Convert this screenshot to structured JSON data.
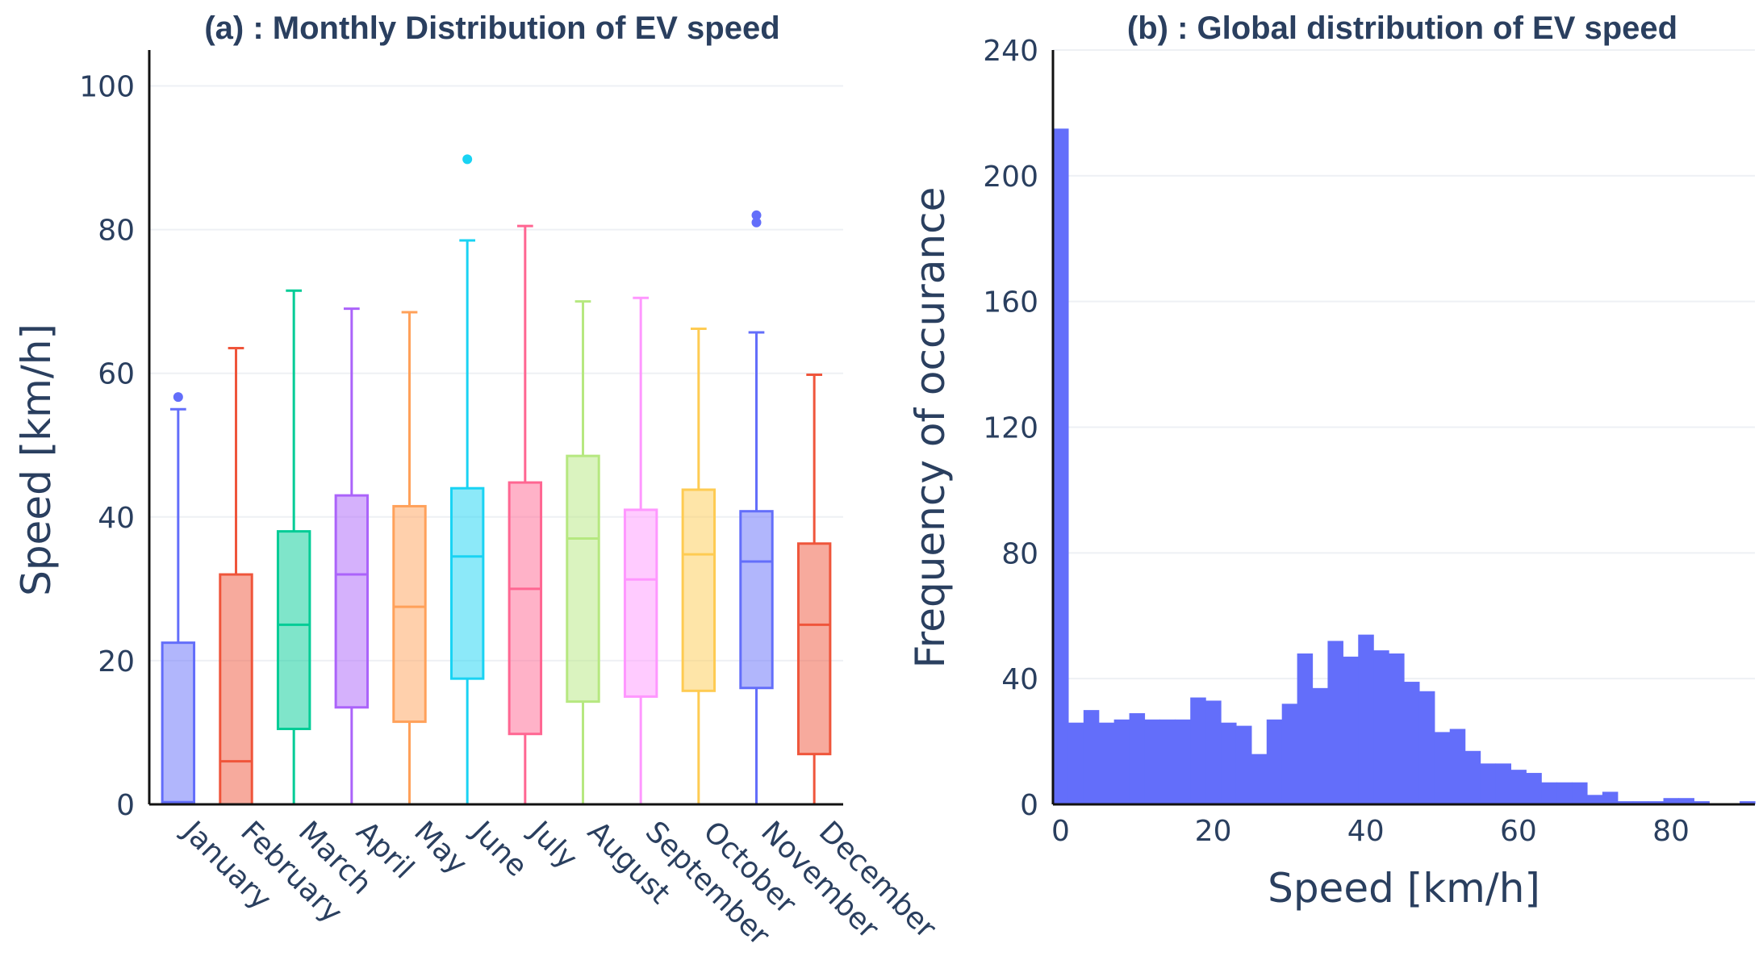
{
  "chart_data": [
    {
      "type": "box",
      "title": "(a) : Monthly Distribution of EV speed",
      "xlabel": "",
      "ylabel": "Speed [km/h]",
      "ylim": [
        0,
        105
      ],
      "yticks": [
        0,
        20,
        40,
        60,
        80,
        100
      ],
      "grid": true,
      "categories": [
        "January",
        "February",
        "March",
        "April",
        "May",
        "June",
        "July",
        "August",
        "September",
        "October",
        "November",
        "December"
      ],
      "series": [
        {
          "category": "January",
          "min": 0,
          "q1": 0.3,
          "median": 0.3,
          "q3": 22.5,
          "max": 55,
          "outliers": [
            56.7
          ],
          "color": "#636efa"
        },
        {
          "category": "February",
          "min": 0,
          "q1": 0,
          "median": 6,
          "q3": 32,
          "max": 63.5,
          "outliers": [],
          "color": "#ef553b"
        },
        {
          "category": "March",
          "min": 0,
          "q1": 10.5,
          "median": 25,
          "q3": 38,
          "max": 71.5,
          "outliers": [],
          "color": "#00cc96"
        },
        {
          "category": "April",
          "min": 0,
          "q1": 13.5,
          "median": 32,
          "q3": 43,
          "max": 69,
          "outliers": [],
          "color": "#ab63fa"
        },
        {
          "category": "May",
          "min": 0,
          "q1": 11.5,
          "median": 27.5,
          "q3": 41.5,
          "max": 68.5,
          "outliers": [],
          "color": "#ffa15a"
        },
        {
          "category": "June",
          "min": 0,
          "q1": 17.5,
          "median": 34.5,
          "q3": 44,
          "max": 78.5,
          "outliers": [
            89.8
          ],
          "color": "#19d3f3"
        },
        {
          "category": "July",
          "min": 0,
          "q1": 9.8,
          "median": 30,
          "q3": 44.8,
          "max": 80.5,
          "outliers": [],
          "color": "#ff6692"
        },
        {
          "category": "August",
          "min": 0,
          "q1": 14.3,
          "median": 37,
          "q3": 48.5,
          "max": 70,
          "outliers": [],
          "color": "#b6e880"
        },
        {
          "category": "September",
          "min": 0,
          "q1": 15,
          "median": 31.3,
          "q3": 41,
          "max": 70.5,
          "outliers": [],
          "color": "#ff97ff"
        },
        {
          "category": "October",
          "min": 0,
          "q1": 15.8,
          "median": 34.8,
          "q3": 43.8,
          "max": 66.2,
          "outliers": [],
          "color": "#fecb52"
        },
        {
          "category": "November",
          "min": 0,
          "q1": 16.2,
          "median": 33.8,
          "q3": 40.8,
          "max": 65.7,
          "outliers": [
            82,
            81
          ],
          "color": "#636efa"
        },
        {
          "category": "December",
          "min": 0,
          "q1": 7,
          "median": 25,
          "q3": 36.3,
          "max": 59.8,
          "outliers": [],
          "color": "#ef553b"
        }
      ]
    },
    {
      "type": "histogram",
      "title": "(b) : Global distribution of EV speed",
      "xlabel": "Speed [km/h]",
      "ylabel": "Frequency of occurance",
      "xlim": [
        -1,
        91
      ],
      "ylim": [
        0,
        240
      ],
      "xticks": [
        0,
        20,
        40,
        60,
        80
      ],
      "yticks": [
        0,
        40,
        80,
        120,
        160,
        200,
        240
      ],
      "grid": true,
      "bin_width": 2,
      "bins_start": -1,
      "color": "#636efa",
      "values": [
        215,
        26,
        30,
        26,
        27,
        29,
        27,
        27,
        27,
        34,
        33,
        26,
        25,
        16,
        27,
        32,
        48,
        37,
        52,
        47,
        54,
        49,
        48,
        39,
        36,
        23,
        24,
        17,
        13,
        13,
        11,
        10,
        7,
        7,
        7,
        3,
        4,
        1,
        1,
        1,
        2,
        2,
        1,
        0,
        0,
        1
      ]
    }
  ]
}
